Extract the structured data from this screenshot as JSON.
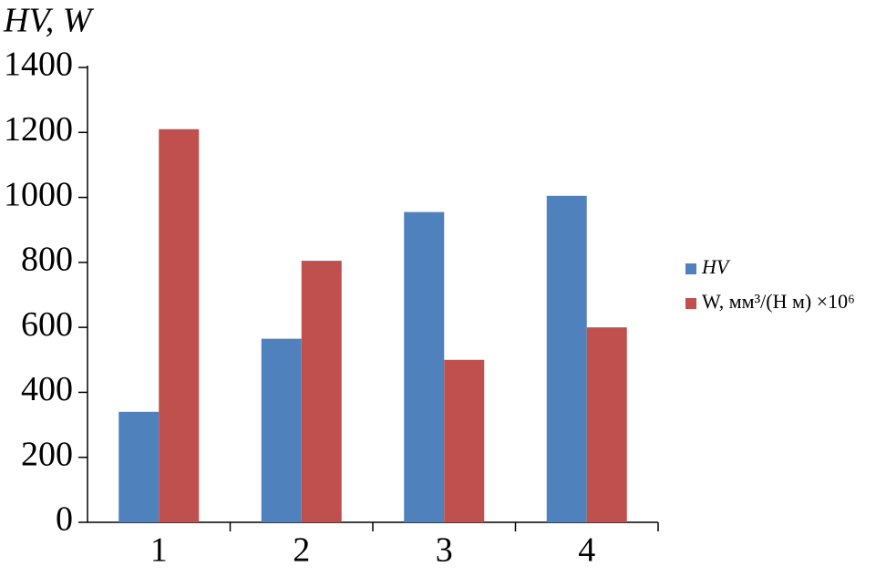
{
  "chart_data": {
    "type": "bar",
    "title": "HV, W",
    "categories": [
      "1",
      "2",
      "3",
      "4"
    ],
    "series": [
      {
        "name": "HV",
        "color": "#4f81bd",
        "values": [
          340,
          565,
          955,
          1005
        ]
      },
      {
        "name": "W, мм³/(Н м) ×10⁶",
        "color": "#c0504d",
        "values": [
          1210,
          805,
          500,
          600
        ]
      }
    ],
    "ylim": [
      0,
      1400
    ],
    "yticks": [
      0,
      200,
      400,
      600,
      800,
      1000,
      1200,
      1400
    ],
    "grid": false,
    "legend": "right"
  }
}
